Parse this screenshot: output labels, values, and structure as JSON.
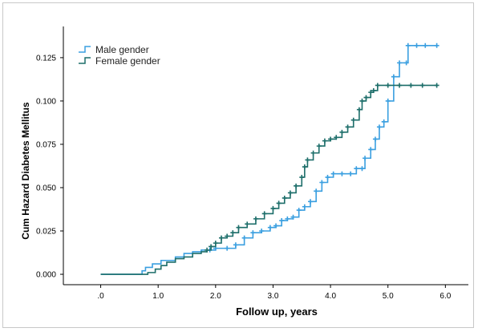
{
  "chart_data": {
    "type": "line",
    "xlabel": "Follow up, years",
    "ylabel": "Cum Hazard Diabetes Mellitus",
    "x_ticks": [
      ".0",
      "1.0",
      "2.0",
      "3.0",
      "4.0",
      "5.0",
      "6.0"
    ],
    "y_ticks": [
      "0.000",
      "0.025",
      "0.050",
      "0.075",
      "0.100",
      "0.125"
    ],
    "xlim": [
      -0.65,
      6.4
    ],
    "ylim": [
      -0.006,
      0.143
    ],
    "grid": false,
    "legend_position": "top-left",
    "series": [
      {
        "name": "Male gender",
        "color": "#3a9fe0",
        "points": [
          [
            0.0,
            0.0
          ],
          [
            0.62,
            0.0
          ],
          [
            0.72,
            0.002
          ],
          [
            0.78,
            0.004
          ],
          [
            0.9,
            0.006
          ],
          [
            1.0,
            0.006
          ],
          [
            1.05,
            0.008
          ],
          [
            1.2,
            0.008
          ],
          [
            1.3,
            0.01
          ],
          [
            1.45,
            0.012
          ],
          [
            1.6,
            0.013
          ],
          [
            1.75,
            0.014
          ],
          [
            1.9,
            0.014
          ],
          [
            2.0,
            0.015
          ],
          [
            2.2,
            0.015
          ],
          [
            2.35,
            0.017
          ],
          [
            2.5,
            0.021
          ],
          [
            2.65,
            0.024
          ],
          [
            2.8,
            0.025
          ],
          [
            2.95,
            0.027
          ],
          [
            3.05,
            0.028
          ],
          [
            3.15,
            0.031
          ],
          [
            3.25,
            0.032
          ],
          [
            3.35,
            0.033
          ],
          [
            3.45,
            0.037
          ],
          [
            3.55,
            0.039
          ],
          [
            3.65,
            0.042
          ],
          [
            3.75,
            0.048
          ],
          [
            3.85,
            0.053
          ],
          [
            3.95,
            0.056
          ],
          [
            4.05,
            0.058
          ],
          [
            4.2,
            0.058
          ],
          [
            4.35,
            0.058
          ],
          [
            4.45,
            0.061
          ],
          [
            4.55,
            0.061
          ],
          [
            4.6,
            0.067
          ],
          [
            4.7,
            0.072
          ],
          [
            4.78,
            0.078
          ],
          [
            4.85,
            0.085
          ],
          [
            4.93,
            0.088
          ],
          [
            5.0,
            0.1
          ],
          [
            5.1,
            0.114
          ],
          [
            5.2,
            0.122
          ],
          [
            5.32,
            0.122
          ],
          [
            5.35,
            0.132
          ],
          [
            5.5,
            0.132
          ],
          [
            5.65,
            0.132
          ],
          [
            5.85,
            0.132
          ]
        ]
      },
      {
        "name": "Female gender",
        "color": "#1d6e6a",
        "points": [
          [
            0.0,
            0.0
          ],
          [
            0.65,
            0.0
          ],
          [
            0.82,
            0.001
          ],
          [
            0.95,
            0.003
          ],
          [
            1.05,
            0.005
          ],
          [
            1.15,
            0.007
          ],
          [
            1.3,
            0.009
          ],
          [
            1.45,
            0.01
          ],
          [
            1.6,
            0.012
          ],
          [
            1.75,
            0.013
          ],
          [
            1.85,
            0.014
          ],
          [
            1.92,
            0.016
          ],
          [
            2.0,
            0.018
          ],
          [
            2.1,
            0.021
          ],
          [
            2.2,
            0.022
          ],
          [
            2.3,
            0.024
          ],
          [
            2.4,
            0.027
          ],
          [
            2.55,
            0.029
          ],
          [
            2.7,
            0.032
          ],
          [
            2.85,
            0.035
          ],
          [
            3.0,
            0.038
          ],
          [
            3.1,
            0.041
          ],
          [
            3.2,
            0.044
          ],
          [
            3.3,
            0.047
          ],
          [
            3.4,
            0.051
          ],
          [
            3.5,
            0.056
          ],
          [
            3.55,
            0.062
          ],
          [
            3.6,
            0.066
          ],
          [
            3.7,
            0.07
          ],
          [
            3.8,
            0.074
          ],
          [
            3.9,
            0.077
          ],
          [
            4.0,
            0.078
          ],
          [
            4.1,
            0.079
          ],
          [
            4.2,
            0.082
          ],
          [
            4.3,
            0.085
          ],
          [
            4.4,
            0.089
          ],
          [
            4.5,
            0.095
          ],
          [
            4.55,
            0.1
          ],
          [
            4.62,
            0.102
          ],
          [
            4.7,
            0.105
          ],
          [
            4.75,
            0.106
          ],
          [
            4.82,
            0.109
          ],
          [
            5.0,
            0.109
          ],
          [
            5.2,
            0.109
          ],
          [
            5.4,
            0.109
          ],
          [
            5.6,
            0.109
          ],
          [
            5.85,
            0.109
          ]
        ]
      }
    ]
  }
}
